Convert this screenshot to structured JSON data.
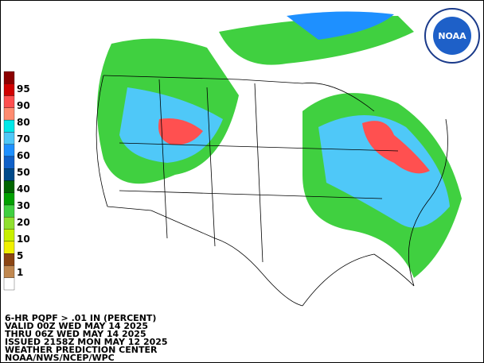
{
  "legend": {
    "labels": [
      "95",
      "90",
      "80",
      "70",
      "60",
      "50",
      "40",
      "30",
      "20",
      "10",
      "5",
      "1"
    ],
    "colors": [
      "#8b0000",
      "#d00000",
      "#ff5050",
      "#ff8c70",
      "#00e8e8",
      "#4fc8f8",
      "#1e90ff",
      "#1060c8",
      "#004a8a",
      "#006400",
      "#00a000",
      "#40d040",
      "#90e030",
      "#c8f000",
      "#f0f000",
      "#8b4513",
      "#c08850",
      "#ffffff"
    ]
  },
  "footer": {
    "lines": [
      "6-HR PQPF > .01 IN (PERCENT)",
      "VALID 00Z WED MAY 14 2025",
      "THRU 06Z WED MAY 14 2025",
      "ISSUED 2158Z MON MAY 12 2025",
      "WEATHER PREDICTION CENTER",
      "NOAA/NWS/NCEP/WPC"
    ]
  },
  "logo": {
    "text": "NOAA"
  }
}
